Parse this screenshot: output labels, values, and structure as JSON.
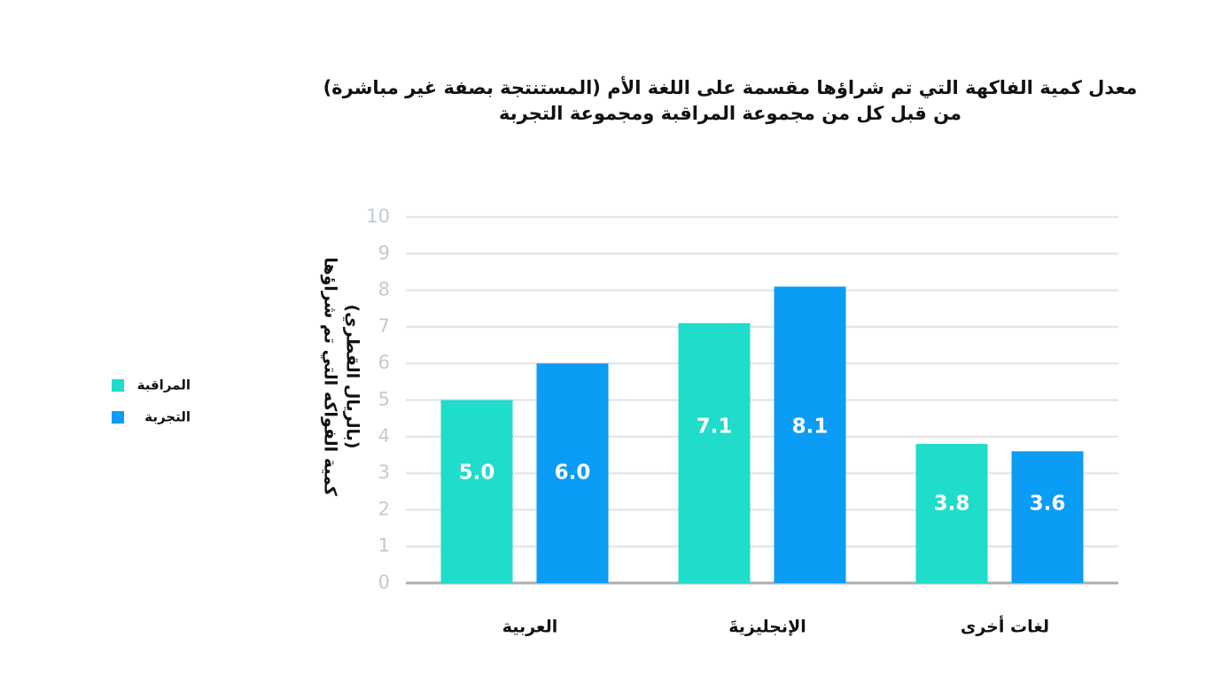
{
  "chart_data": {
    "type": "bar",
    "title": [
      "معدل كمية الفاكهة التي تم شراؤها مقسمة على اللغة الأم (المستنتجة بصفة غير مباشرة)",
      "من قبل كل من مجموعة المراقبة ومجموعة التجربة"
    ],
    "ylabel": [
      "كمية الفواكه التي تم شراؤها",
      "(بالريال القطري)"
    ],
    "categories": [
      "العربية",
      "الإنجليزيةَ",
      "لغات أخرى"
    ],
    "series": [
      {
        "name": "المراقبة",
        "color": "#1fdccb",
        "values": [
          5.0,
          7.1,
          3.8
        ],
        "value_labels": [
          "5.0",
          "7.1",
          "3.8"
        ]
      },
      {
        "name": "التجربة",
        "color": "#0b9cf5",
        "values": [
          6.0,
          8.1,
          3.6
        ],
        "value_labels": [
          "6.0",
          "8.1",
          "3.6"
        ]
      }
    ],
    "ylim": [
      0,
      10
    ],
    "yticks": [
      0,
      1,
      2,
      3,
      4,
      5,
      6,
      7,
      8,
      9,
      10
    ],
    "grid": true,
    "legend": "left"
  }
}
